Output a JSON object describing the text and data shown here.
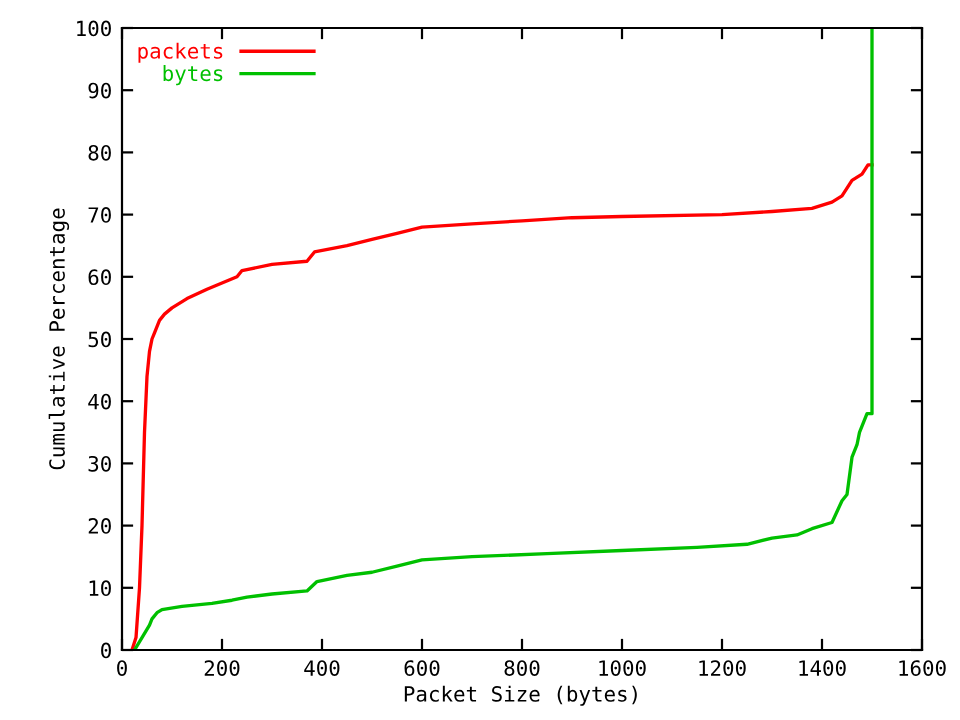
{
  "chart_data": {
    "type": "line",
    "xlabel": "Packet Size (bytes)",
    "ylabel": "Cumulative Percentage",
    "xlim": [
      0,
      1600
    ],
    "ylim": [
      0,
      100
    ],
    "xticks": [
      0,
      200,
      400,
      600,
      800,
      1000,
      1200,
      1400,
      1600
    ],
    "yticks": [
      0,
      10,
      20,
      30,
      40,
      50,
      60,
      70,
      80,
      90,
      100
    ],
    "legend": "top left",
    "grid": false,
    "line_style": "solid",
    "marker": "none",
    "series": [
      {
        "name": "packets",
        "color": "#ff0000",
        "x": [
          20,
          28,
          35,
          40,
          45,
          50,
          55,
          60,
          65,
          70,
          75,
          85,
          100,
          130,
          170,
          200,
          230,
          240,
          300,
          370,
          385,
          450,
          500,
          550,
          600,
          700,
          800,
          900,
          1000,
          1200,
          1300,
          1380,
          1420,
          1440,
          1460,
          1480,
          1492,
          1500
        ],
        "values": [
          0,
          2,
          10,
          20,
          35,
          44,
          48,
          50,
          51,
          52,
          53,
          54,
          55,
          56.5,
          58,
          59,
          60,
          61,
          62,
          62.5,
          64,
          65,
          66,
          67,
          68,
          68.5,
          69,
          69.5,
          69.7,
          70,
          70.5,
          71,
          72,
          73,
          75.5,
          76.5,
          78,
          78
        ]
      },
      {
        "name": "bytes",
        "color": "#00c000",
        "x": [
          25,
          40,
          55,
          60,
          70,
          80,
          120,
          180,
          220,
          250,
          300,
          370,
          390,
          450,
          500,
          550,
          600,
          700,
          850,
          1000,
          1150,
          1250,
          1300,
          1350,
          1380,
          1420,
          1440,
          1450,
          1460,
          1470,
          1475,
          1490,
          1500,
          1500
        ],
        "values": [
          0,
          2,
          4,
          5,
          6,
          6.5,
          7,
          7.5,
          8,
          8.5,
          9,
          9.5,
          11,
          12,
          12.5,
          13.5,
          14.5,
          15,
          15.5,
          16,
          16.5,
          17,
          18,
          18.5,
          19.5,
          20.5,
          24,
          25,
          31,
          33,
          35,
          38,
          38,
          100
        ]
      }
    ]
  }
}
